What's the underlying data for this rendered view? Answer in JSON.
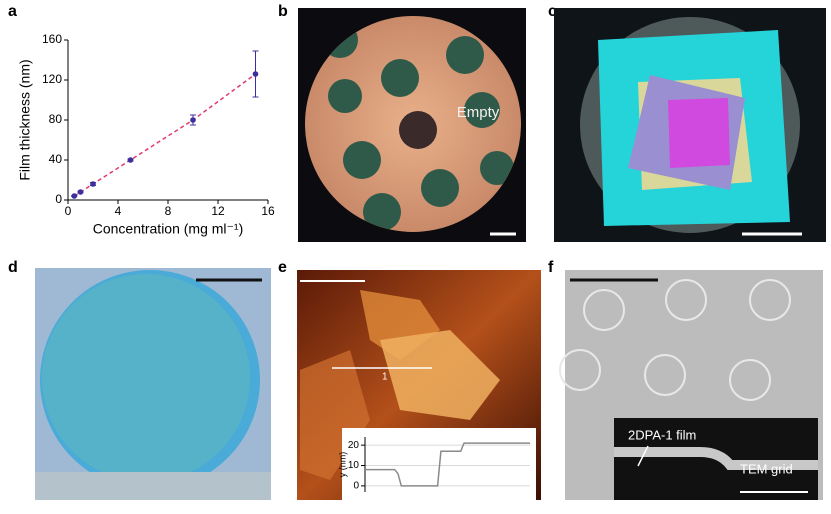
{
  "chart_data": [
    {
      "type": "line",
      "xlabel": "Concentration (mg ml⁻¹)",
      "ylabel": "Film thickness (nm)",
      "x": [
        0.5,
        1,
        2,
        5,
        10,
        15
      ],
      "series": [
        {
          "color": "#e23a6a",
          "marker_color": "#3b2f9e",
          "values": [
            4,
            8,
            16,
            40,
            80,
            126
          ],
          "errors": [
            0.5,
            0.8,
            1.5,
            1,
            5,
            23
          ]
        }
      ],
      "xlim": [
        0,
        16
      ],
      "xticks": [
        0,
        4,
        8,
        12,
        16
      ],
      "ylim": [
        0,
        160
      ],
      "yticks": [
        0,
        40,
        80,
        120,
        160
      ],
      "grid": false,
      "dashed": true
    },
    {
      "type": "line",
      "ylabel": "y (nm)",
      "x": [
        0,
        10,
        18,
        20,
        22,
        30,
        40,
        44,
        46,
        48,
        54,
        58,
        60,
        62,
        70,
        80,
        90,
        100
      ],
      "series": [
        {
          "color": "#8a8a8a",
          "values": [
            8,
            8,
            8,
            6,
            0,
            0,
            0,
            0,
            17,
            17,
            17,
            17,
            21,
            21,
            21,
            21,
            21,
            21
          ]
        }
      ],
      "xlim": [
        0,
        100
      ],
      "ylim": [
        -3,
        24
      ],
      "yticks": [
        0,
        10,
        20
      ],
      "grid": true,
      "dashed": false
    }
  ],
  "panel_labels": [
    "a",
    "b",
    "c",
    "d",
    "e",
    "f"
  ],
  "annotations": {
    "b_empty": "Empty",
    "e_line": "1",
    "f_film": "2DPA-1 film",
    "f_grid": "TEM grid"
  }
}
